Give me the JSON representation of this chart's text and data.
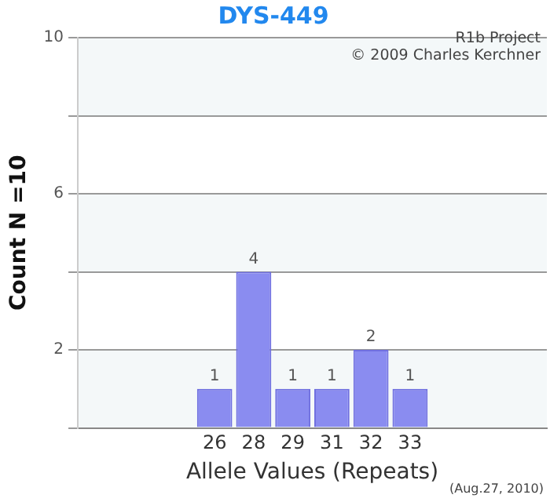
{
  "chart_data": {
    "type": "bar",
    "title": "DYS-449",
    "xlabel": "Allele Values (Repeats)",
    "ylabel": "Count N =10",
    "categories": [
      null,
      null,
      null,
      "26",
      "28",
      "29",
      "31",
      "32",
      "33",
      null,
      null,
      null
    ],
    "values": [
      null,
      null,
      null,
      1,
      4,
      1,
      1,
      2,
      1,
      null,
      null,
      null
    ],
    "color": "#8a8cf0",
    "ylim": [
      0,
      10
    ],
    "yticks": [
      {
        "value": 0,
        "label": null
      },
      2,
      {
        "value": 4,
        "label": null
      },
      6,
      {
        "value": 8,
        "label": null
      },
      10
    ],
    "grid": "y",
    "legend": false,
    "data_labels": true,
    "annotations": [
      "R1b Project",
      "© 2009 Charles Kerchner",
      "(Aug.27, 2010)"
    ]
  }
}
